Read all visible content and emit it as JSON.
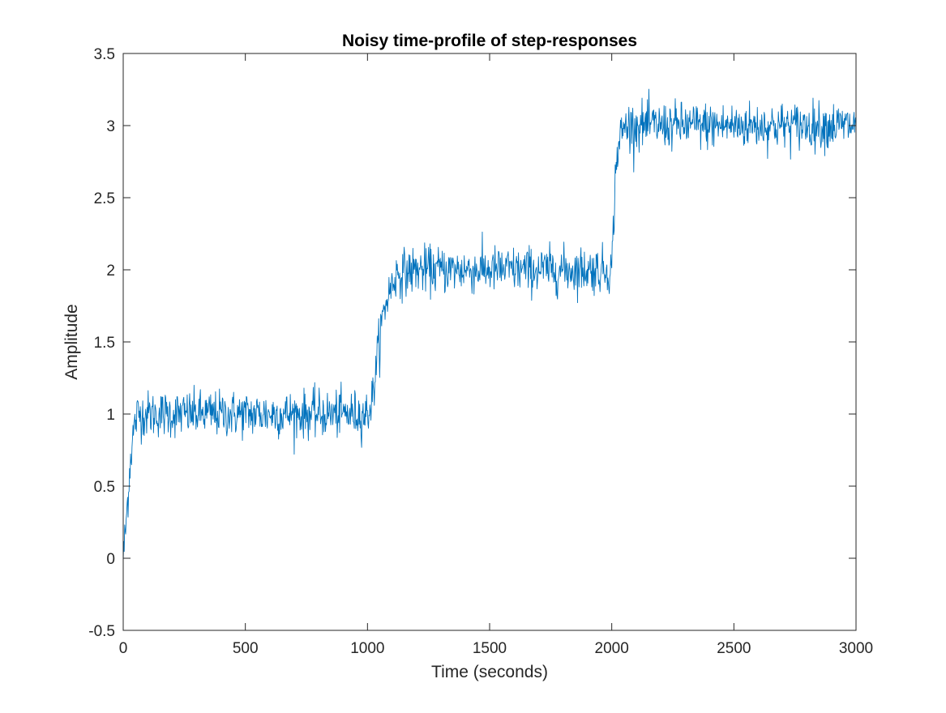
{
  "chart_data": {
    "type": "line",
    "title": "Noisy time-profile of step-responses",
    "xlabel": "Time (seconds)",
    "ylabel": "Amplitude",
    "xlim": [
      0,
      3000
    ],
    "ylim": [
      -0.5,
      3.5
    ],
    "xticks": [
      0,
      500,
      1000,
      1500,
      2000,
      2500,
      3000
    ],
    "xtick_labels": [
      "0",
      "500",
      "1000",
      "1500",
      "2000",
      "2500",
      "3000"
    ],
    "yticks": [
      -0.5,
      0,
      0.5,
      1,
      1.5,
      2,
      2.5,
      3,
      3.5
    ],
    "ytick_labels": [
      "-0.5",
      "0",
      "0.5",
      "1",
      "1.5",
      "2",
      "2.5",
      "3",
      "3.5"
    ],
    "grid": false,
    "box": true,
    "series": [
      {
        "color": "#0072bd",
        "sample_step": 2,
        "noise_std": 0.08,
        "x": [
          0,
          10,
          20,
          30,
          40,
          50,
          60,
          100,
          200,
          500,
          1000,
          1020,
          1040,
          1060,
          1080,
          1100,
          1120,
          1200,
          1500,
          2000,
          2008,
          2015,
          2025,
          2040,
          2060,
          2200,
          2500,
          3000
        ],
        "y": [
          0,
          0.2,
          0.45,
          0.7,
          0.85,
          0.95,
          1.0,
          1.0,
          1.0,
          1.0,
          1.0,
          1.1,
          1.4,
          1.65,
          1.8,
          1.9,
          1.97,
          2.0,
          2.0,
          2.0,
          2.35,
          2.65,
          2.85,
          2.95,
          3.0,
          3.0,
          3.0,
          3.0
        ]
      }
    ]
  }
}
